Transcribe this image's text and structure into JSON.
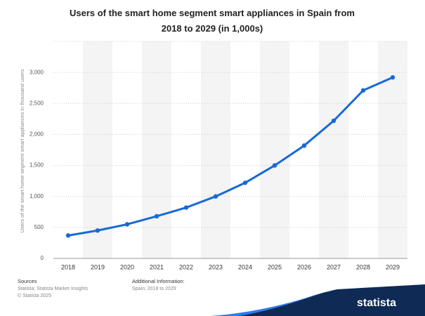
{
  "chart_data": {
    "type": "line",
    "title": "Users of the smart home segment smart appliances in Spain from 2018 to 2029 (in 1,000s)",
    "y_label": "Users of the smart home segment smart appliances in thousand users",
    "categories": [
      "2018",
      "2019",
      "2020",
      "2021",
      "2022",
      "2023",
      "2024",
      "2025",
      "2026",
      "2027",
      "2028",
      "2029"
    ],
    "series": [
      {
        "name": "Users",
        "color": "#1769d6",
        "values": [
          370,
          450,
          550,
          680,
          820,
          1000,
          1220,
          1500,
          1820,
          2220,
          2710,
          2920
        ]
      }
    ],
    "ylim": [
      0,
      3500
    ],
    "yticks": [
      0,
      500,
      {
        "value": 1000,
        "label": "1,000"
      },
      {
        "value": 1500,
        "label": "1,500"
      },
      {
        "value": 2000,
        "label": "2,000"
      },
      {
        "value": 2500,
        "label": "2,500"
      },
      {
        "value": 3000,
        "label": "3,000"
      }
    ],
    "grid": true
  },
  "footer": {
    "sources_title": "Sources",
    "sources": "Statista; Statista Market Insights",
    "copyright": "© Statista 2025",
    "info_title": "Additional Information:",
    "info": "Spain; 2018 to 2029",
    "logo": "statista"
  }
}
